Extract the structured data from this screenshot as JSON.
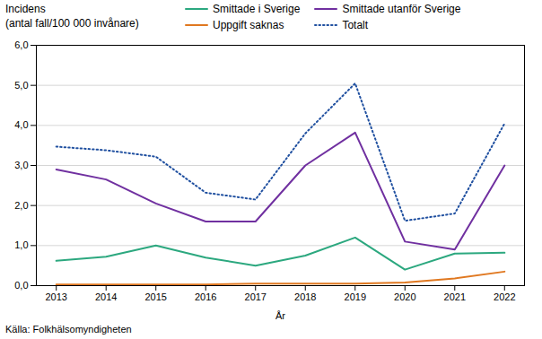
{
  "chart_data": {
    "type": "line",
    "ylabel": [
      "Incidens",
      "(antal fall/100 000 invånare)"
    ],
    "xlabel": "År",
    "source": "Källa: Folkhälsomyndigheten",
    "x": [
      2013,
      2014,
      2015,
      2016,
      2017,
      2018,
      2019,
      2020,
      2021,
      2022
    ],
    "xlim": [
      2012.6,
      2022.4
    ],
    "xticks": [
      2013,
      2014,
      2015,
      2016,
      2017,
      2018,
      2019,
      2020,
      2021,
      2022
    ],
    "ylim": [
      0,
      6.0
    ],
    "yticks": [
      {
        "value": 0.0,
        "label": "0,0"
      },
      {
        "value": 1.0,
        "label": "1,0"
      },
      {
        "value": 2.0,
        "label": "2,0"
      },
      {
        "value": 3.0,
        "label": "3,0"
      },
      {
        "value": 4.0,
        "label": "4,0"
      },
      {
        "value": 5.0,
        "label": "5,0"
      },
      {
        "value": 6.0,
        "label": "6,0"
      }
    ],
    "grid": true,
    "legend": "top",
    "series": [
      {
        "name": "Smittade i Sverige",
        "color": "#2ca87f",
        "line_style": "solid",
        "values": [
          0.62,
          0.72,
          1.0,
          0.7,
          0.5,
          0.75,
          1.2,
          0.4,
          0.8,
          0.82
        ]
      },
      {
        "name": "Smittade utanför Sverige",
        "color": "#7030a0",
        "line_style": "solid",
        "values": [
          2.9,
          2.65,
          2.05,
          1.6,
          1.6,
          3.0,
          3.82,
          1.1,
          0.9,
          3.0
        ]
      },
      {
        "name": "Uppgift saknas",
        "color": "#e07820",
        "line_style": "solid",
        "values": [
          0.03,
          0.03,
          0.03,
          0.03,
          0.05,
          0.05,
          0.05,
          0.08,
          0.18,
          0.35
        ]
      },
      {
        "name": "Totalt",
        "color": "#2050a0",
        "line_style": "dotted",
        "values": [
          3.47,
          3.38,
          3.22,
          2.32,
          2.15,
          3.8,
          5.05,
          1.62,
          1.8,
          4.05
        ]
      }
    ]
  }
}
